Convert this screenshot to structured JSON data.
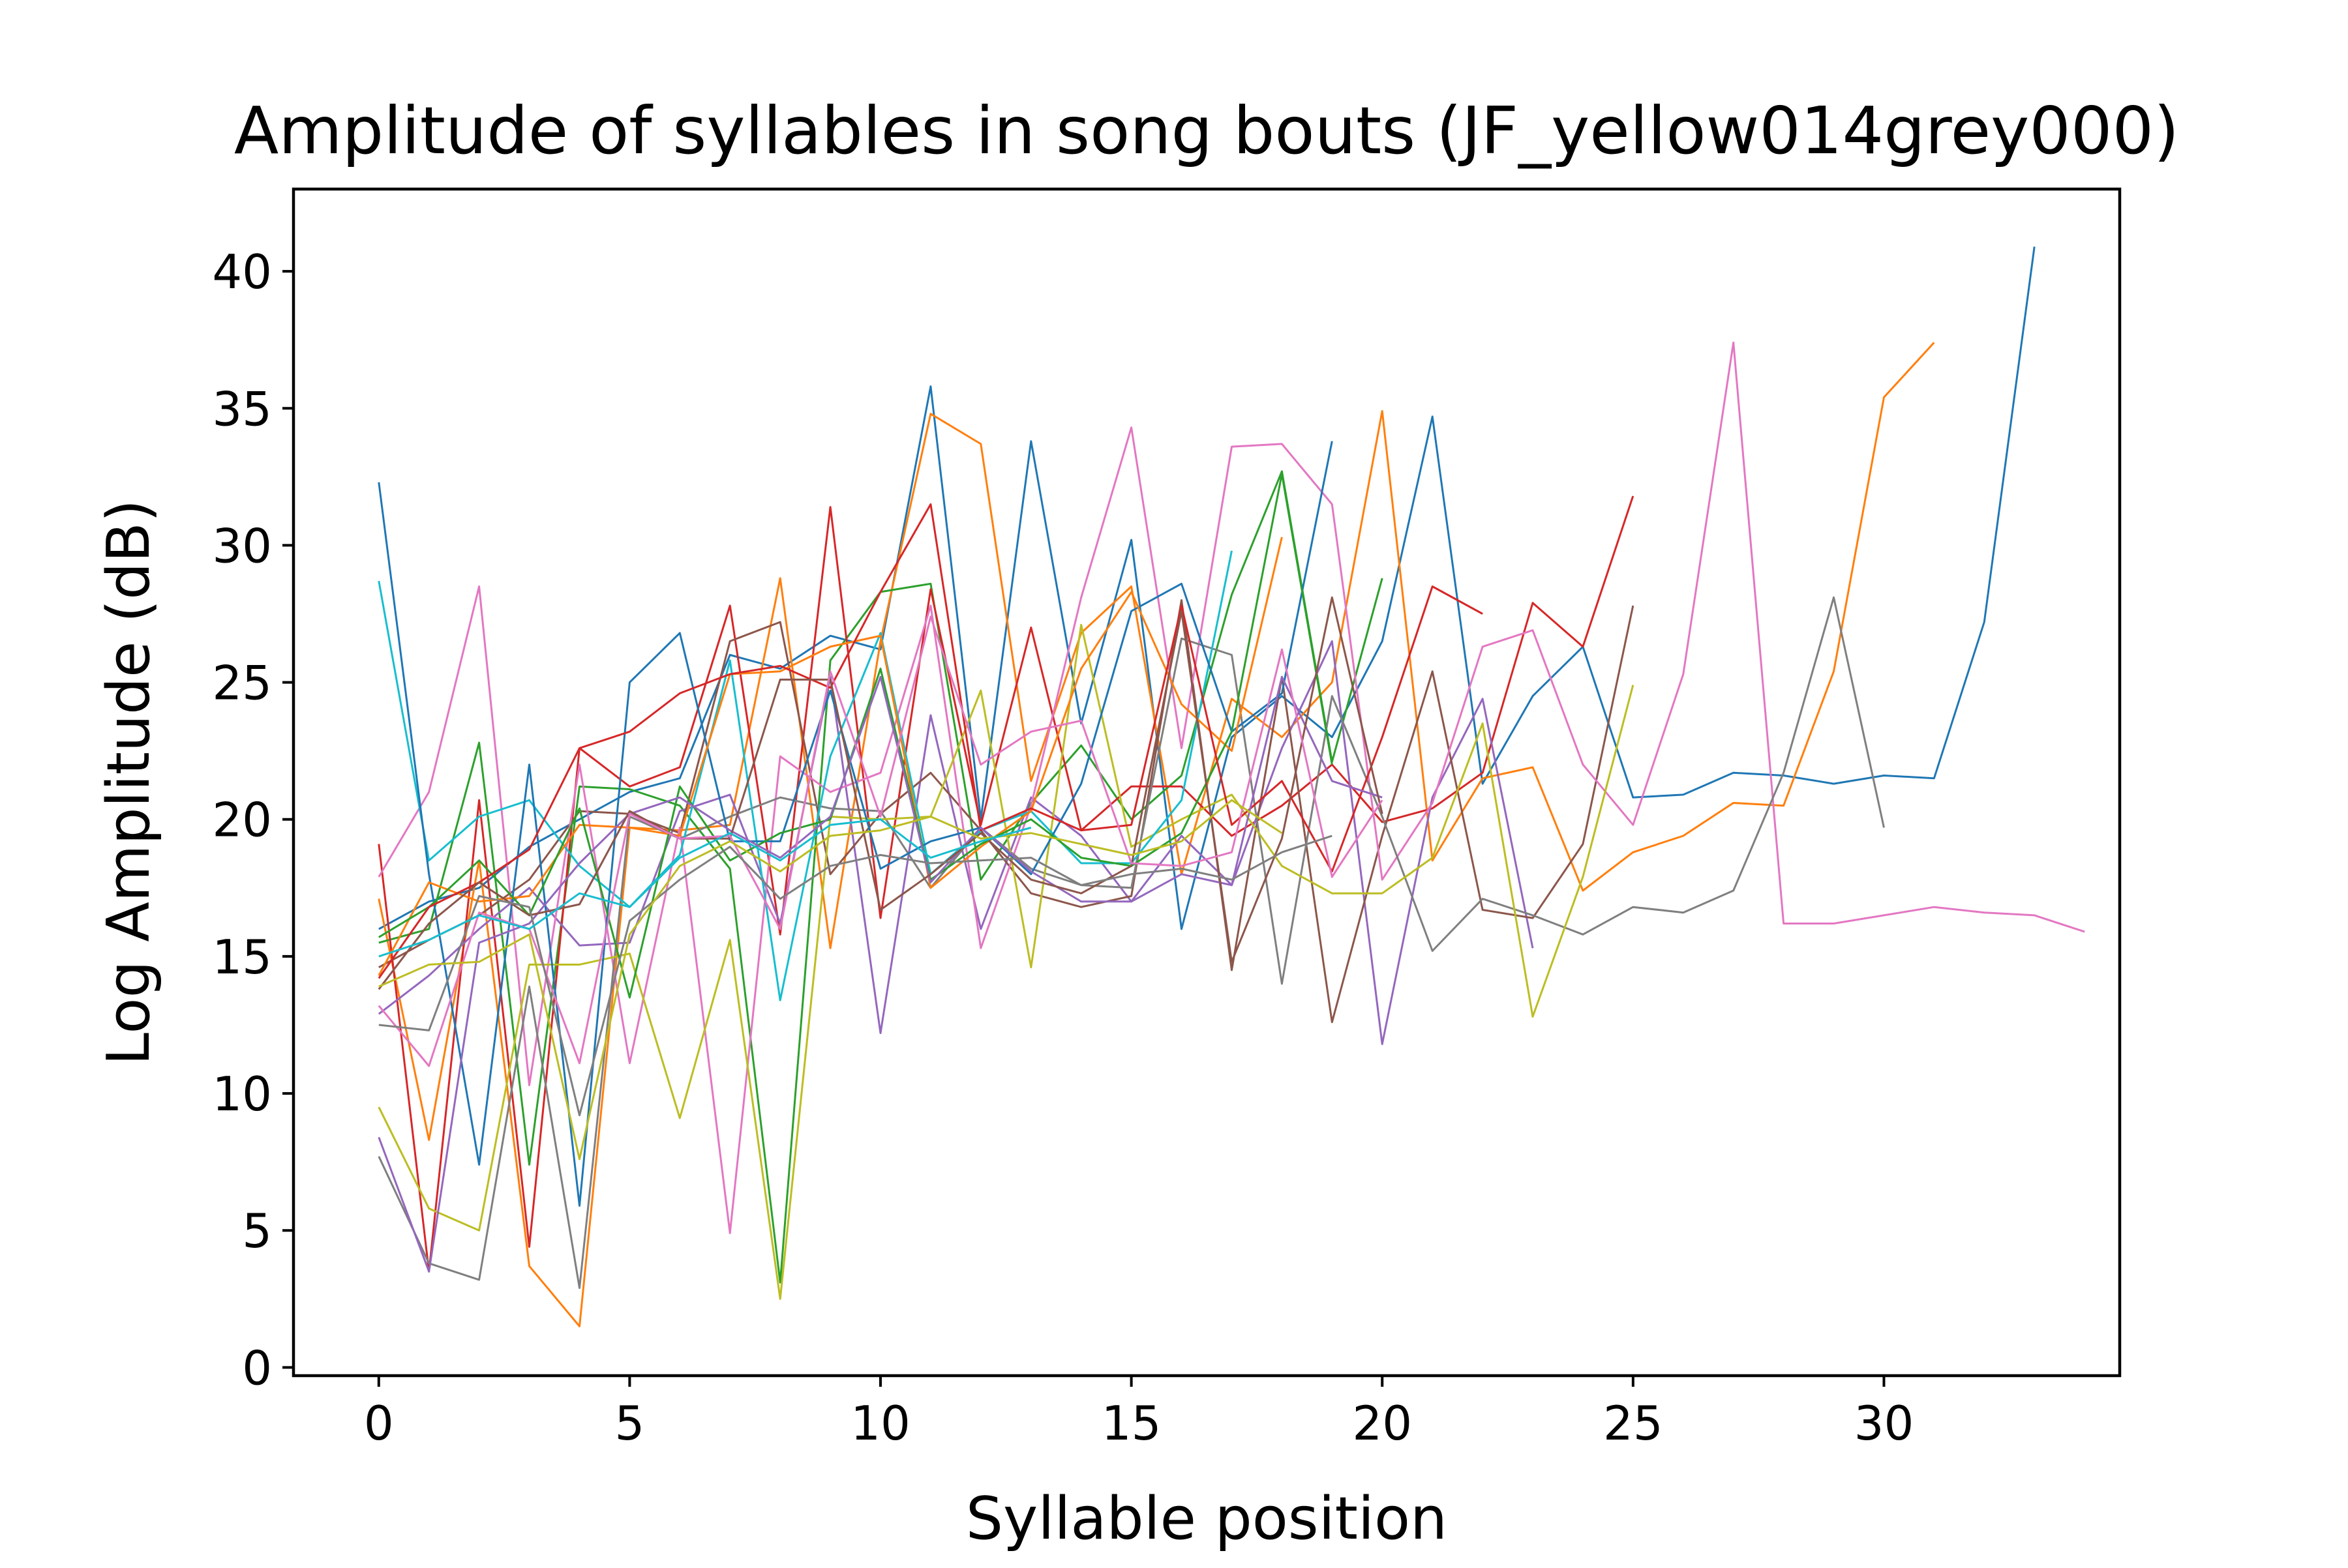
{
  "chart_data": {
    "type": "line",
    "title": "Amplitude of syllables in song bouts (JF_yellow014grey000)",
    "xlabel": "Syllable position",
    "ylabel": "Log Amplitude (dB)",
    "xlim": [
      -1.7,
      34.7
    ],
    "ylim": [
      -0.3,
      43.0
    ],
    "xticks": [
      0,
      5,
      10,
      15,
      20,
      25,
      30
    ],
    "yticks": [
      0,
      5,
      10,
      15,
      20,
      25,
      30,
      35,
      40
    ],
    "grid": false,
    "legend": "none",
    "series": [
      {
        "color": "#1f77b4",
        "values": [
          16.0,
          17.0,
          17.5,
          19.0,
          20.0,
          21.0,
          21.5,
          26.0,
          25.5,
          26.7,
          26.2,
          35.8,
          20.0,
          33.8,
          23.5,
          30.2,
          16.0,
          23.0,
          24.5,
          23.0,
          26.5,
          34.7,
          21.3,
          24.5,
          26.3,
          20.8,
          20.9,
          21.7,
          21.6,
          21.3,
          21.6,
          21.5,
          27.2,
          40.9
        ]
      },
      {
        "color": "#ff7f0e",
        "values": [
          17.1,
          8.3,
          18.5,
          3.7,
          1.5,
          19.7,
          19.6,
          19.8,
          28.8,
          15.3,
          26.5,
          34.8,
          33.7,
          21.4,
          26.8,
          28.5,
          18.0,
          24.4,
          23.0,
          25.0,
          34.9,
          18.5,
          21.5,
          21.9,
          17.4,
          18.8,
          19.4,
          20.6,
          20.5,
          25.4,
          35.4,
          37.4
        ]
      },
      {
        "color": "#2ca02c",
        "values": [
          15.5,
          16.0,
          22.8,
          7.4,
          21.2,
          21.1,
          20.5,
          18.2,
          3.1,
          25.8,
          28.3,
          28.6,
          17.8,
          20.6,
          22.7,
          20.0,
          21.6,
          28.2,
          32.7,
          22.1,
          28.8
        ]
      },
      {
        "color": "#d62728",
        "values": [
          19.1,
          3.5,
          20.7,
          4.4,
          22.6,
          21.2,
          21.9,
          27.8,
          15.8,
          31.4,
          16.4,
          28.4,
          19.8,
          27.0,
          19.6,
          21.2,
          21.2,
          19.4,
          20.5,
          22.0,
          19.9,
          20.4,
          21.7,
          27.9,
          26.3,
          31.8
        ]
      },
      {
        "color": "#9467bd",
        "values": [
          12.9,
          14.3,
          16.0,
          17.5,
          15.4,
          15.5,
          20.3,
          20.9,
          16.2,
          25.2,
          12.2,
          23.8,
          16.0,
          20.8,
          19.4,
          17.0,
          19.4,
          17.6,
          22.6,
          26.5,
          11.8,
          20.8,
          24.4,
          15.3
        ]
      },
      {
        "color": "#8c564b",
        "values": [
          14.6,
          15.6,
          16.5,
          17.8,
          20.3,
          20.2,
          19.5,
          26.5,
          27.2,
          18.0,
          20.2,
          21.7,
          19.6,
          17.3,
          16.8,
          17.2,
          28.0,
          14.5,
          25.2,
          12.6,
          19.4,
          25.4,
          16.7,
          16.4,
          19.1,
          27.8
        ]
      },
      {
        "color": "#e377c2",
        "values": [
          17.9,
          21.0,
          28.5,
          10.3,
          22.0,
          11.1,
          19.7,
          4.9,
          22.3,
          21.0,
          21.7,
          27.8,
          15.3,
          20.5,
          28.1,
          34.3,
          22.6,
          33.6,
          33.7,
          31.5,
          17.8,
          20.6,
          26.3,
          26.9,
          22.0,
          19.8,
          25.3,
          37.4,
          16.2,
          16.2,
          16.5,
          16.8,
          16.6,
          16.5,
          15.9
        ]
      },
      {
        "color": "#7f7f7f",
        "values": [
          7.7,
          3.8,
          3.2,
          13.9,
          2.9,
          20.1,
          19.3,
          20.1,
          20.8,
          20.4,
          20.3,
          17.5,
          19.7,
          18.2,
          17.6,
          17.5,
          26.6,
          26.0,
          14.0,
          24.5,
          20.1,
          15.2,
          17.1,
          16.5,
          15.8,
          16.8,
          16.6,
          17.4,
          21.7,
          28.1,
          19.7
        ]
      },
      {
        "color": "#bcbd22",
        "values": [
          9.5,
          5.8,
          5.0,
          14.7,
          14.7,
          15.1,
          9.1,
          15.6,
          2.5,
          20.1,
          20.0,
          20.1,
          24.7,
          14.6,
          27.1,
          19.0,
          20.0,
          20.9,
          18.3,
          17.3,
          17.3,
          18.6,
          23.5,
          12.8,
          17.9,
          24.9
        ]
      },
      {
        "color": "#17becf",
        "values": [
          28.7,
          18.5,
          20.1,
          20.7,
          18.3,
          16.8,
          18.7,
          25.8,
          13.4,
          22.3,
          26.8,
          18.0,
          19.6,
          20.3,
          18.4,
          18.4,
          20.7,
          29.8
        ]
      },
      {
        "color": "#1f77b4",
        "values": [
          32.3,
          18.0,
          7.4,
          22.0,
          5.9,
          25.0,
          26.8,
          19.2,
          19.2,
          24.7,
          18.2,
          19.2,
          19.7,
          18.0,
          21.3,
          27.6,
          28.6,
          23.2,
          24.6,
          33.8
        ]
      },
      {
        "color": "#ff7f0e",
        "values": [
          14.3,
          17.7,
          17.0,
          17.2,
          19.8,
          19.7,
          19.4,
          25.3,
          25.4,
          26.3,
          26.7,
          17.5,
          19.0,
          20.3,
          25.5,
          28.3,
          24.2,
          22.5,
          30.3
        ]
      },
      {
        "color": "#2ca02c",
        "values": [
          15.7,
          16.8,
          18.5,
          16.5,
          20.4,
          13.5,
          21.2,
          18.5,
          19.5,
          20.0,
          25.5,
          17.8,
          19.1,
          20.0,
          18.6,
          18.3,
          19.5,
          23.2,
          32.6,
          22.0
        ]
      },
      {
        "color": "#d62728",
        "values": [
          14.2,
          16.8,
          17.7,
          18.9,
          22.6,
          23.2,
          24.6,
          25.3,
          25.6,
          24.8,
          28.3,
          31.5,
          19.6,
          20.4,
          19.6,
          19.8,
          27.8,
          19.8,
          21.4,
          18.1,
          23.0,
          28.5,
          27.5
        ]
      },
      {
        "color": "#9467bd",
        "values": [
          8.4,
          3.5,
          15.5,
          16.2,
          18.4,
          20.2,
          20.8,
          19.6,
          18.6,
          20.1,
          25.2,
          17.7,
          19.7,
          18.1,
          17.0,
          17.0,
          18.0,
          17.6,
          25.2,
          21.4,
          20.8
        ]
      },
      {
        "color": "#8c564b",
        "values": [
          13.8,
          16.2,
          17.7,
          16.5,
          16.9,
          20.3,
          19.3,
          19.3,
          25.1,
          25.1,
          16.7,
          18.0,
          19.5,
          17.8,
          17.3,
          18.3,
          27.6,
          14.8,
          19.3,
          28.1,
          20.2
        ]
      },
      {
        "color": "#e377c2",
        "values": [
          13.2,
          11.0,
          16.6,
          16.0,
          11.1,
          20.2,
          19.3,
          19.4,
          16.0,
          25.4,
          20.1,
          27.4,
          22.0,
          23.2,
          23.6,
          18.4,
          18.3,
          18.8,
          26.2,
          17.9,
          20.7
        ]
      },
      {
        "color": "#7f7f7f",
        "values": [
          12.5,
          12.3,
          17.2,
          16.8,
          9.2,
          16.3,
          17.8,
          19.0,
          17.1,
          18.3,
          18.7,
          18.4,
          18.5,
          18.6,
          17.6,
          18.0,
          18.2,
          17.8,
          18.8,
          19.4
        ]
      },
      {
        "color": "#bcbd22",
        "values": [
          13.9,
          14.7,
          14.8,
          15.8,
          7.6,
          15.8,
          18.3,
          19.2,
          18.1,
          19.4,
          19.6,
          20.1,
          19.3,
          19.5,
          19.1,
          18.7,
          19.2,
          20.7,
          19.5
        ]
      },
      {
        "color": "#17becf",
        "values": [
          15.0,
          15.6,
          16.5,
          16.0,
          17.3,
          16.8,
          18.6,
          19.5,
          18.5,
          19.8,
          20.0,
          18.6,
          19.2,
          19.7
        ]
      }
    ]
  }
}
